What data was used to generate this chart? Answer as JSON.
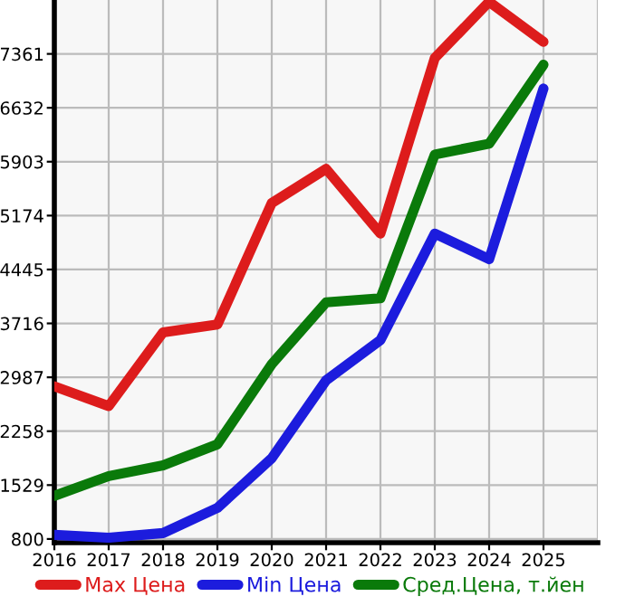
{
  "chart_data": {
    "type": "line",
    "x": [
      2016,
      2017,
      2018,
      2019,
      2020,
      2021,
      2022,
      2023,
      2024,
      2025
    ],
    "series": [
      {
        "name": "Max Цена",
        "color": "#dd1c1c",
        "values": [
          2865,
          2598,
          3595,
          3700,
          5344,
          5806,
          4931,
          7305,
          8066,
          7524
        ]
      },
      {
        "name": "Min Цена",
        "color": "#1c1cdd",
        "values": [
          856,
          817,
          880,
          1220,
          1893,
          2946,
          3490,
          4931,
          4584,
          6892
        ]
      },
      {
        "name": "Сред.Цена, т.йен",
        "color": "#0a7a0a",
        "values": [
          1383,
          1651,
          1796,
          2081,
          3164,
          4000,
          4056,
          6000,
          6146,
          7215
        ]
      }
    ],
    "xlim": [
      2016,
      2026
    ],
    "xticks": [
      2016,
      2017,
      2018,
      2019,
      2020,
      2021,
      2022,
      2023,
      2024,
      2025
    ],
    "ylim": [
      750,
      8090
    ],
    "yticks": [
      800,
      1529,
      2258,
      2987,
      3716,
      4445,
      5174,
      5903,
      6632,
      7361
    ],
    "grid": true,
    "legend": "bottom",
    "marker": "none",
    "line_style": "solid"
  }
}
